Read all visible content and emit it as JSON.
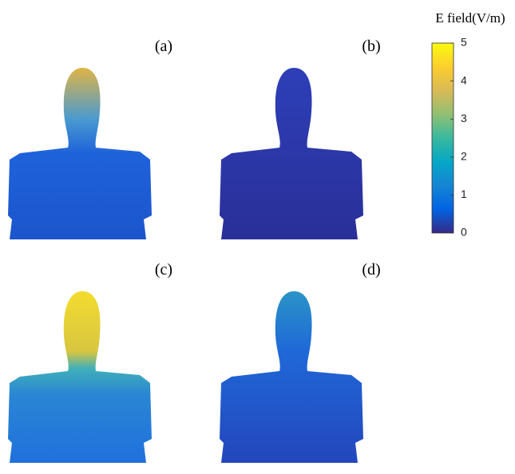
{
  "chart_data": {
    "type": "colorbar",
    "title": "E field(V/m)",
    "panels": [
      "(a)",
      "(b)",
      "(c)",
      "(d)"
    ],
    "ylim": [
      0,
      5
    ],
    "yticks": [
      0,
      1,
      2,
      3,
      4,
      5
    ],
    "colormap": [
      "#352a87",
      "#0363e1",
      "#1485d4",
      "#06a7c6",
      "#38b99e",
      "#92bf73",
      "#d9ba56",
      "#fcce2e",
      "#f9fb0e"
    ]
  }
}
